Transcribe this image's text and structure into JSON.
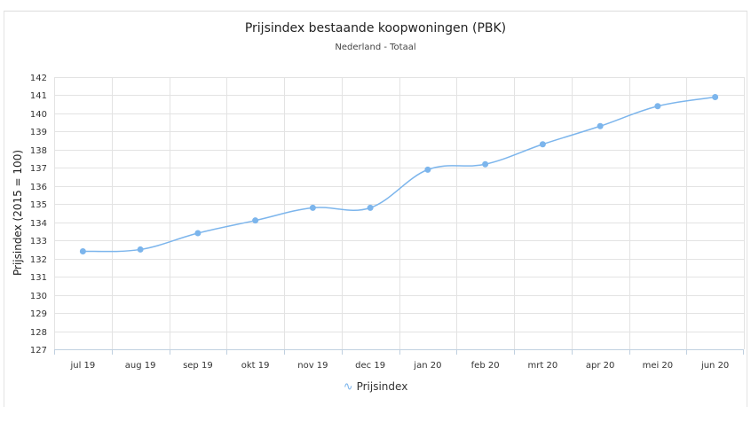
{
  "chart_data": {
    "type": "line",
    "title": "Prijsindex bestaande koopwoningen (PBK)",
    "subtitle": "Nederland - Totaal",
    "ylabel": "Prijsindex (2015 = 100)",
    "xlabel": "",
    "categories": [
      "jul 19",
      "aug 19",
      "sep 19",
      "okt 19",
      "nov 19",
      "dec 19",
      "jan 20",
      "feb 20",
      "mrt 20",
      "apr 20",
      "mei 20",
      "jun 20"
    ],
    "series": [
      {
        "name": "Prijsindex",
        "color": "#7cb5ec",
        "values": [
          132.4,
          132.5,
          133.4,
          134.1,
          134.8,
          134.8,
          136.9,
          137.2,
          138.3,
          139.3,
          140.4,
          140.9
        ]
      }
    ],
    "ylim": [
      127,
      142
    ],
    "yticks": [
      127,
      128,
      129,
      130,
      131,
      132,
      133,
      134,
      135,
      136,
      137,
      138,
      139,
      140,
      141,
      142
    ],
    "grid": true,
    "legend_position": "bottom-center",
    "legend_icon": "line-marker-icon"
  }
}
